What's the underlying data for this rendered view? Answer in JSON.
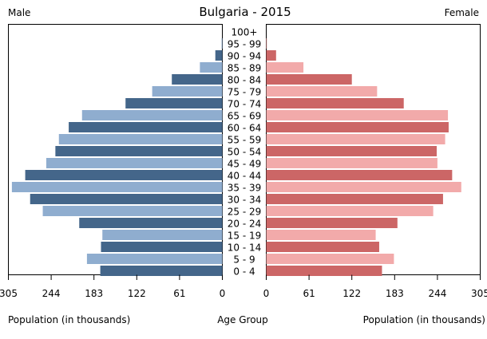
{
  "chart_data": {
    "type": "bar",
    "orientation": "horizontal",
    "layout": "population-pyramid",
    "title": "Bulgaria - 2015",
    "left_label": "Male",
    "right_label": "Female",
    "xlabel_left": "Population (in thousands)",
    "xlabel_center": "Age Group",
    "xlabel_right": "Population (in thousands)",
    "xlim": [
      0,
      305
    ],
    "ticks": [
      0,
      61,
      122,
      183,
      244,
      305
    ],
    "tick_labels_left": [
      "0",
      "61",
      "122",
      "183",
      "244",
      "305"
    ],
    "tick_labels_right": [
      "0",
      "61",
      "122",
      "183",
      "244",
      "305"
    ],
    "categories": [
      "0 - 4",
      "5 - 9",
      "10 - 14",
      "15 - 19",
      "20 - 24",
      "25 - 29",
      "30 - 34",
      "35 - 39",
      "40 - 44",
      "45 - 49",
      "50 - 54",
      "55 - 59",
      "60 - 64",
      "65 - 69",
      "70 - 74",
      "75 - 79",
      "80 - 84",
      "85 - 89",
      "90 - 94",
      "95 - 99",
      "100+"
    ],
    "series": [
      {
        "name": "Male",
        "values": [
          174,
          193,
          173,
          171,
          204,
          256,
          274,
          300,
          281,
          251,
          238,
          233,
          219,
          200,
          138,
          100,
          72,
          32,
          10,
          1,
          0
        ],
        "colors": [
          "#44668a",
          "#8fadcf"
        ]
      },
      {
        "name": "Female",
        "values": [
          165,
          182,
          161,
          156,
          187,
          238,
          252,
          278,
          265,
          244,
          243,
          255,
          260,
          259,
          196,
          158,
          122,
          53,
          14,
          1,
          0
        ],
        "colors": [
          "#cc6666",
          "#f2aaaa"
        ]
      }
    ],
    "grid": false
  }
}
